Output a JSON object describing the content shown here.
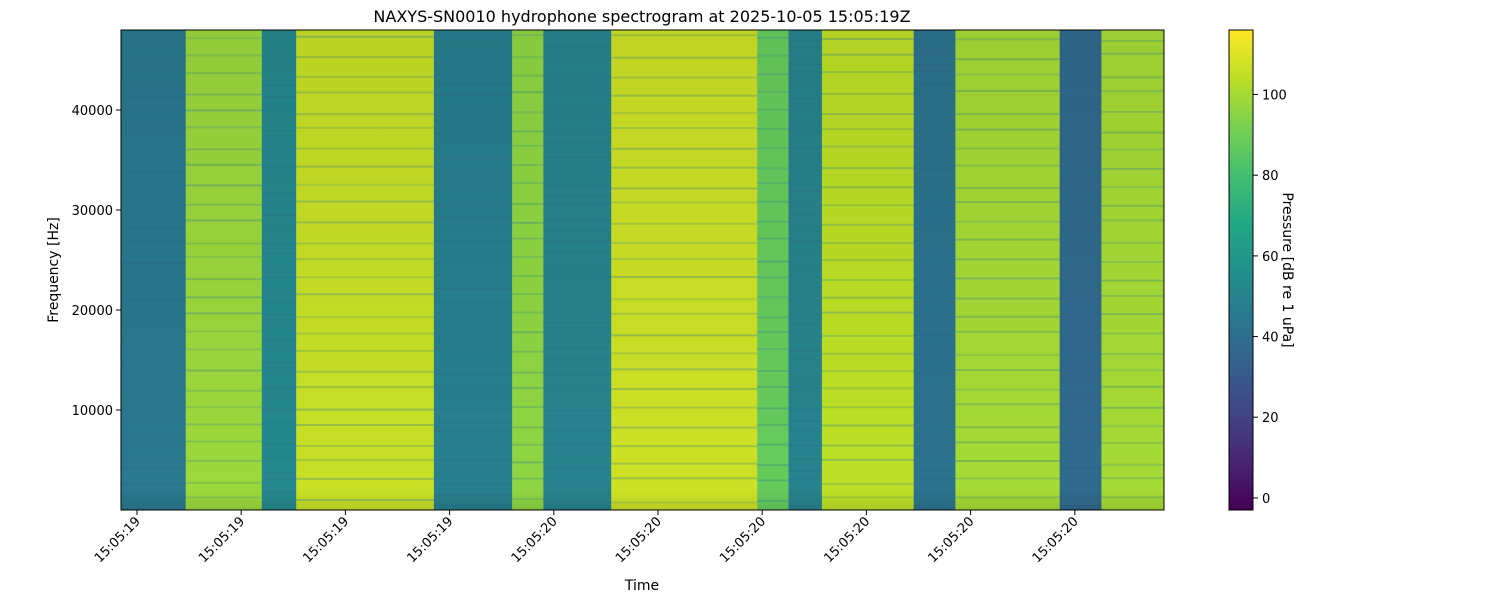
{
  "chart_data": {
    "type": "heatmap",
    "title": "NAXYS-SN0010 hydrophone spectrogram at 2025-10-05 15:05:19Z",
    "xlabel": "Time",
    "ylabel": "Frequency [Hz]",
    "colorbar_label": "Pressure [dB re 1 uPa]",
    "colormap": "viridis",
    "x_tick_labels": [
      "15:05:19",
      "15:05:19",
      "15:05:19",
      "15:05:19",
      "15:05:20",
      "15:05:20",
      "15:05:20",
      "15:05:20",
      "15:05:20",
      "15:05:20"
    ],
    "y_ticks": [
      10000,
      20000,
      30000,
      40000
    ],
    "y_tick_labels": [
      "10000",
      "20000",
      "30000",
      "40000"
    ],
    "ylim": [
      0,
      48000
    ],
    "colorbar_ticks": [
      0,
      20,
      40,
      60,
      80,
      100
    ],
    "colorbar_tick_labels": [
      "0",
      "20",
      "40",
      "60",
      "80",
      "100"
    ],
    "clim": [
      -3,
      116
    ],
    "time_segments": [
      {
        "start": 0.0,
        "end": 0.062,
        "level_db": 45
      },
      {
        "start": 0.062,
        "end": 0.135,
        "level_db": 98
      },
      {
        "start": 0.135,
        "end": 0.168,
        "level_db": 52
      },
      {
        "start": 0.168,
        "end": 0.3,
        "level_db": 106
      },
      {
        "start": 0.3,
        "end": 0.375,
        "level_db": 48
      },
      {
        "start": 0.375,
        "end": 0.405,
        "level_db": 96
      },
      {
        "start": 0.405,
        "end": 0.47,
        "level_db": 50
      },
      {
        "start": 0.47,
        "end": 0.61,
        "level_db": 107
      },
      {
        "start": 0.61,
        "end": 0.64,
        "level_db": 88
      },
      {
        "start": 0.64,
        "end": 0.672,
        "level_db": 50
      },
      {
        "start": 0.672,
        "end": 0.76,
        "level_db": 104
      },
      {
        "start": 0.76,
        "end": 0.8,
        "level_db": 42
      },
      {
        "start": 0.8,
        "end": 0.9,
        "level_db": 100
      },
      {
        "start": 0.9,
        "end": 0.94,
        "level_db": 38
      },
      {
        "start": 0.94,
        "end": 1.0,
        "level_db": 100
      }
    ]
  }
}
